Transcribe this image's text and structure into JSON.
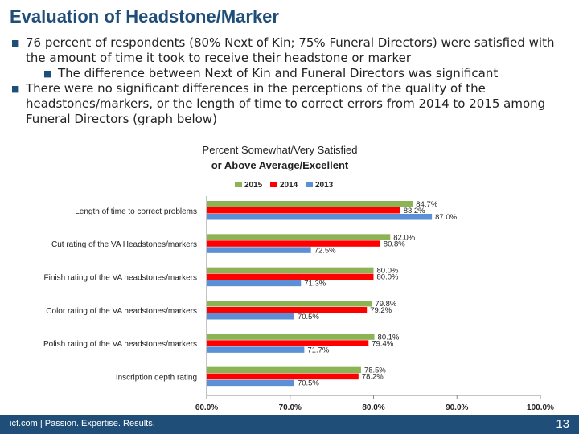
{
  "slide": {
    "title": "Evaluation of Headstone/Marker",
    "bullets": [
      {
        "level": 1,
        "text": "76 percent of respondents (80% Next of Kin; 75% Funeral Directors) were satisfied with the amount of time it took to receive their headstone or marker"
      },
      {
        "level": 2,
        "text": "The difference between Next of Kin and Funeral Directors was significant"
      },
      {
        "level": 1,
        "text": "There were no significant differences in the perceptions of the quality of the headstones/markers, or the length of time to correct errors from 2014 to 2015 among Funeral Directors (graph below)"
      }
    ]
  },
  "chart_data": {
    "type": "bar",
    "orientation": "horizontal",
    "title": "Percent Somewhat/Very  Satisfied\nor Above Average/Excellent",
    "categories": [
      "Length of time to correct problems",
      "Cut rating of the VA Headstones/markers",
      "Finish rating of the VA headstones/markers",
      "Color rating of the VA headstones/markers",
      "Polish rating of the VA headstones/markers",
      "Inscription depth rating"
    ],
    "series": [
      {
        "name": "2015",
        "color": "#8cb455",
        "values": [
          84.7,
          82.0,
          80.0,
          79.8,
          80.1,
          78.5
        ],
        "labels": [
          "84.7%",
          "82.0%",
          "80.0%",
          "79.8%",
          "80.1%",
          "78.5%"
        ]
      },
      {
        "name": "2014",
        "color": "#ff0000",
        "values": [
          83.2,
          80.8,
          80.0,
          79.2,
          79.4,
          78.2
        ],
        "labels": [
          "83.2%",
          "80.8%",
          "80.0%",
          "79.2%",
          "79.4%",
          "78.2%"
        ]
      },
      {
        "name": "2013",
        "color": "#5b8fd6",
        "values": [
          87.0,
          72.5,
          71.3,
          70.5,
          71.7,
          70.5
        ],
        "labels": [
          "87.0%",
          "72.5%",
          "71.3%",
          "70.5%",
          "71.7%",
          "70.5%"
        ]
      }
    ],
    "xlim": [
      60,
      100
    ],
    "xticks": [
      60,
      70,
      80,
      90,
      100
    ],
    "xtick_labels": [
      "60.0%",
      "70.0%",
      "80.0%",
      "90.0%",
      "100.0%"
    ],
    "legend_position": "top",
    "grid": false
  },
  "footer": {
    "brand": "icf.com | Passion. Expertise. Results.",
    "page_number": "13"
  }
}
